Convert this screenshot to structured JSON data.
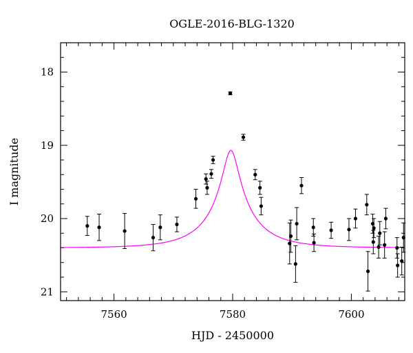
{
  "chart_data": {
    "type": "scatter",
    "title": "OGLE-2016-BLG-1320",
    "xlabel": "HJD - 2450000",
    "ylabel": "I magnitude",
    "xlim": [
      7551,
      7609
    ],
    "ylim": [
      21.12,
      17.6
    ],
    "y_inverted": true,
    "x_ticks": [
      7560,
      7580,
      7600
    ],
    "y_ticks": [
      18,
      19,
      20,
      21
    ],
    "x_minor_step": 2,
    "y_minor_step": 0.2,
    "grid": false,
    "legend": "none",
    "colors": {
      "model": "#ff00ff",
      "points": "#000000",
      "axes": "#000000"
    },
    "model": {
      "kind": "point-lens",
      "t0": 7579.7,
      "tE": 8.0,
      "u0": 0.16,
      "baseline_mag": 20.4,
      "source_mag": 21.26
    },
    "observations": [
      {
        "x": 7555.5,
        "y": 20.1,
        "err": 0.13
      },
      {
        "x": 7557.5,
        "y": 20.12,
        "err": 0.18
      },
      {
        "x": 7561.8,
        "y": 20.17,
        "err": 0.24
      },
      {
        "x": 7566.6,
        "y": 20.26,
        "err": 0.18
      },
      {
        "x": 7567.8,
        "y": 20.12,
        "err": 0.17
      },
      {
        "x": 7570.6,
        "y": 20.08,
        "err": 0.1
      },
      {
        "x": 7573.8,
        "y": 19.73,
        "err": 0.13
      },
      {
        "x": 7575.5,
        "y": 19.46,
        "err": 0.07
      },
      {
        "x": 7575.7,
        "y": 19.58,
        "err": 0.09
      },
      {
        "x": 7576.4,
        "y": 19.39,
        "err": 0.06
      },
      {
        "x": 7576.7,
        "y": 19.2,
        "err": 0.05
      },
      {
        "x": 7579.6,
        "y": 18.29,
        "err": 0.02
      },
      {
        "x": 7581.8,
        "y": 18.89,
        "err": 0.04
      },
      {
        "x": 7583.8,
        "y": 19.4,
        "err": 0.07
      },
      {
        "x": 7584.6,
        "y": 19.58,
        "err": 0.09
      },
      {
        "x": 7584.8,
        "y": 19.83,
        "err": 0.12
      },
      {
        "x": 7589.6,
        "y": 20.34,
        "err": 0.28
      },
      {
        "x": 7589.8,
        "y": 20.24,
        "err": 0.22
      },
      {
        "x": 7590.6,
        "y": 20.62,
        "err": 0.25
      },
      {
        "x": 7590.8,
        "y": 20.07,
        "err": 0.22
      },
      {
        "x": 7591.6,
        "y": 19.55,
        "err": 0.11
      },
      {
        "x": 7593.6,
        "y": 20.12,
        "err": 0.12
      },
      {
        "x": 7593.7,
        "y": 20.33,
        "err": 0.12
      },
      {
        "x": 7596.6,
        "y": 20.16,
        "err": 0.11
      },
      {
        "x": 7599.6,
        "y": 20.15,
        "err": 0.15
      },
      {
        "x": 7600.7,
        "y": 20.0,
        "err": 0.13
      },
      {
        "x": 7602.6,
        "y": 19.81,
        "err": 0.14
      },
      {
        "x": 7602.8,
        "y": 20.72,
        "err": 0.27
      },
      {
        "x": 7603.6,
        "y": 20.07,
        "err": 0.13
      },
      {
        "x": 7603.7,
        "y": 20.32,
        "err": 0.16
      },
      {
        "x": 7603.8,
        "y": 20.13,
        "err": 0.13
      },
      {
        "x": 7604.6,
        "y": 20.39,
        "err": 0.15
      },
      {
        "x": 7604.8,
        "y": 20.2,
        "err": 0.16
      },
      {
        "x": 7605.6,
        "y": 20.36,
        "err": 0.18
      },
      {
        "x": 7605.8,
        "y": 20.0,
        "err": 0.14
      },
      {
        "x": 7607.7,
        "y": 20.4,
        "err": 0.14
      },
      {
        "x": 7607.8,
        "y": 20.64,
        "err": 0.16
      },
      {
        "x": 7608.5,
        "y": 20.58,
        "err": 0.19
      },
      {
        "x": 7608.8,
        "y": 20.26,
        "err": 0.2
      }
    ]
  }
}
